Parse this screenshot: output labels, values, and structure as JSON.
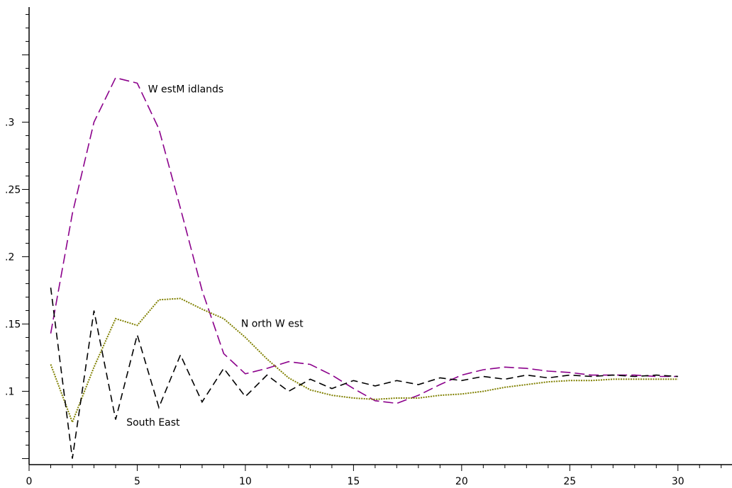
{
  "chart_data": {
    "type": "line",
    "title": "",
    "xlabel": "",
    "ylabel": "",
    "xlim": [
      0,
      32.5
    ],
    "ylim": [
      0.0455,
      0.3855
    ],
    "x_ticks": [
      0,
      5,
      10,
      15,
      20,
      25,
      30
    ],
    "x_tick_labels": [
      "0",
      "5",
      "10",
      "15",
      "20",
      "25",
      "30"
    ],
    "y_ticks": [
      0.1,
      0.15,
      0.2,
      0.25,
      0.3
    ],
    "y_tick_labels": [
      ".1",
      ".15",
      ".2",
      ".25",
      ".3"
    ],
    "grid": false,
    "legend": "none",
    "x": [
      1,
      2,
      3,
      4,
      5,
      6,
      7,
      8,
      9,
      10,
      11,
      12,
      13,
      14,
      15,
      16,
      17,
      18,
      19,
      20,
      21,
      22,
      23,
      24,
      25,
      26,
      27,
      28,
      29,
      30
    ],
    "series": [
      {
        "name": "W estM idlands",
        "color": "#8b008b",
        "dash": "long-dash",
        "label_at": [
          5.5,
          0.322
        ],
        "values": [
          0.143,
          0.232,
          0.3,
          0.333,
          0.329,
          0.295,
          0.236,
          0.175,
          0.128,
          0.113,
          0.117,
          0.122,
          0.12,
          0.112,
          0.102,
          0.093,
          0.091,
          0.097,
          0.105,
          0.112,
          0.116,
          0.118,
          0.117,
          0.115,
          0.114,
          0.112,
          0.112,
          0.112,
          0.111,
          0.111
        ]
      },
      {
        "name": "N orth W est",
        "color": "#808000",
        "dash": "dotted",
        "label_at": [
          9.8,
          0.148
        ],
        "values": [
          0.12,
          0.077,
          0.118,
          0.154,
          0.149,
          0.168,
          0.169,
          0.161,
          0.154,
          0.14,
          0.124,
          0.11,
          0.101,
          0.097,
          0.095,
          0.094,
          0.095,
          0.095,
          0.097,
          0.098,
          0.1,
          0.103,
          0.105,
          0.107,
          0.108,
          0.108,
          0.109,
          0.109,
          0.109,
          0.109
        ]
      },
      {
        "name": "South East",
        "color": "#000000",
        "dash": "dashed",
        "label_at": [
          4.5,
          0.0745
        ],
        "values": [
          0.177,
          0.05,
          0.16,
          0.079,
          0.142,
          0.088,
          0.127,
          0.092,
          0.117,
          0.096,
          0.112,
          0.1,
          0.109,
          0.102,
          0.108,
          0.104,
          0.108,
          0.105,
          0.11,
          0.108,
          0.111,
          0.109,
          0.112,
          0.11,
          0.112,
          0.111,
          0.112,
          0.111,
          0.112,
          0.111
        ]
      }
    ]
  }
}
